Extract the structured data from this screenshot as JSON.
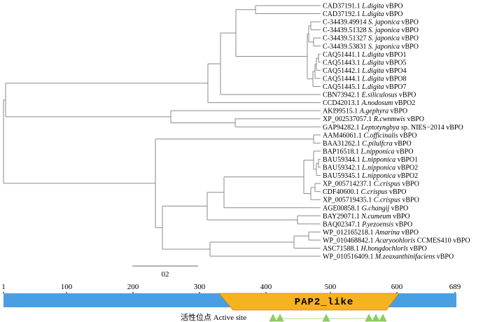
{
  "tree": {
    "leaves": [
      {
        "acc": "CAD37191.1",
        "sp": "L.digita",
        "tail": "vBPO"
      },
      {
        "acc": "CAD37192.1",
        "sp": "L.digita",
        "tail": "vBPO"
      },
      {
        "acc": "C-34439.49914",
        "sp": "S. japonica",
        "tail": "vBPO"
      },
      {
        "acc": "C-34439.51328",
        "sp": "S. japonica",
        "tail": "vBPO"
      },
      {
        "acc": "C-34439.51327",
        "sp": "S. japonica",
        "tail": "vBPO"
      },
      {
        "acc": "C-34439.53831",
        "sp": "S. japonica",
        "tail": "vBPO"
      },
      {
        "acc": "CAQ51441.1",
        "sp": "L.digita",
        "tail": "vBPO1"
      },
      {
        "acc": "CAQ51443.1",
        "sp": "L.digita",
        "tail": "vBPO5"
      },
      {
        "acc": "CAQ51442.1",
        "sp": "L.digita",
        "tail": "vBPO4"
      },
      {
        "acc": "CAQ51444.1",
        "sp": "L.digita",
        "tail": "vBPO8"
      },
      {
        "acc": "CAQ51445.1",
        "sp": "L.digita",
        "tail": "vBPO7"
      },
      {
        "acc": "CBN73942.1",
        "sp": "E.siliculosus",
        "tail": "vBPO"
      },
      {
        "acc": "CCD42013.1",
        "sp": "A.nodosum",
        "tail": "vBPO2"
      },
      {
        "acc": "AKI99515.1",
        "sp": "A.gephyra",
        "tail": "vBPO"
      },
      {
        "acc": "XP_002537057.1",
        "sp": "R.cwnmwis",
        "tail": "vBPO"
      },
      {
        "acc": "GAP94282.1",
        "sp": "Leptotyngbya",
        "tail": "sp. NIES−2014 vBPO"
      },
      {
        "acc": "AAM46061.1",
        "sp": "C.officinalis",
        "tail": "vBPO"
      },
      {
        "acc": "BAA31262.1",
        "sp": "C.pilulfcra",
        "tail": "vBPO"
      },
      {
        "acc": "BAP16518.1",
        "sp": "L.nipponica",
        "tail": "vBPO"
      },
      {
        "acc": "BAU59344.1",
        "sp": "L.nipponica",
        "tail": "vBPO1"
      },
      {
        "acc": "BAU59342.1",
        "sp": "L.nipponica",
        "tail": "vBPO2"
      },
      {
        "acc": "BAU59345.1",
        "sp": "L.nipponica",
        "tail": "vBPO2"
      },
      {
        "acc": "XP_005714237.1",
        "sp": "C.crispus",
        "tail": "vBPO"
      },
      {
        "acc": "CDF40600.1",
        "sp": "C.crispus",
        "tail": "vBPO"
      },
      {
        "acc": "XP_005719435.1",
        "sp": "C.crispus",
        "tail": "vBPO"
      },
      {
        "acc": "AGE00858.1",
        "sp": "G.changij",
        "tail": "vBPO"
      },
      {
        "acc": "BAY29071.1",
        "sp": "N.cumeum",
        "tail": "vBPO"
      },
      {
        "acc": "BAQ02347.1",
        "sp": "P.yezoensis",
        "tail": "vBPO"
      },
      {
        "acc": "WP_012165218.1",
        "sp": "Amarina",
        "tail": "vBPO"
      },
      {
        "acc": "WP_010468842.1",
        "sp": "Acaryoohloris",
        "tail": "CCMES410 vBPO"
      },
      {
        "acc": "ASC71588.1",
        "sp": "H.hongdochlorls",
        "tail": "vBPO"
      },
      {
        "acc": "WP_010516409.1",
        "sp": "M.zeaxanthinifaciens",
        "tail": "vBPO"
      }
    ],
    "scale_bar_label": "02"
  },
  "domain_map": {
    "ticks": [
      "1",
      "100",
      "200",
      "300",
      "400",
      "500",
      "600",
      "689"
    ],
    "domain_label": "PAP2_like",
    "active_site_label": "活性位点 Active site",
    "bar_color": "#4a9fe3",
    "domain_color": "#f5b221",
    "marker_color": "#8ccf5a"
  }
}
